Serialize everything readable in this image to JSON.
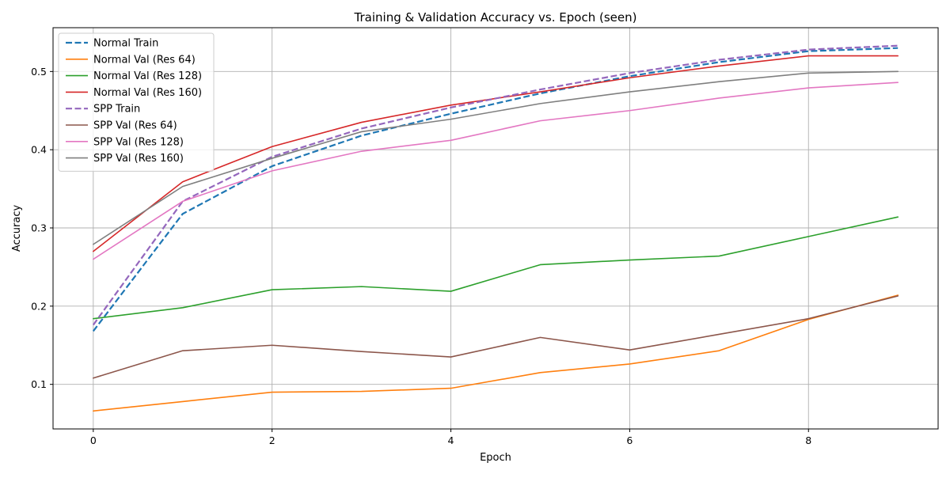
{
  "chart_data": {
    "type": "line",
    "title": "Training & Validation Accuracy vs. Epoch (seen)",
    "xlabel": "Epoch",
    "ylabel": "Accuracy",
    "xlim": [
      -0.45,
      9.45
    ],
    "ylim": [
      0.043,
      0.556
    ],
    "x_ticks": [
      0,
      2,
      4,
      6,
      8
    ],
    "x_tick_labels": [
      "0",
      "2",
      "4",
      "6",
      "8"
    ],
    "y_ticks": [
      0.1,
      0.2,
      0.3,
      0.4,
      0.5
    ],
    "y_tick_labels": [
      "0.1",
      "0.2",
      "0.3",
      "0.4",
      "0.5"
    ],
    "grid": true,
    "legend_position": "top-left",
    "x": [
      0,
      1,
      2,
      3,
      4,
      5,
      6,
      7,
      8,
      9
    ],
    "series": [
      {
        "name": "Normal Train",
        "color": "#1f77b4",
        "dashed": true,
        "values": [
          0.168,
          0.318,
          0.379,
          0.418,
          0.446,
          0.472,
          0.494,
          0.512,
          0.526,
          0.53
        ]
      },
      {
        "name": "Normal Val (Res 64)",
        "color": "#ff7f0e",
        "dashed": false,
        "values": [
          0.066,
          0.078,
          0.09,
          0.091,
          0.095,
          0.115,
          0.126,
          0.143,
          0.183,
          0.214
        ]
      },
      {
        "name": "Normal Val (Res 128)",
        "color": "#2ca02c",
        "dashed": false,
        "values": [
          0.184,
          0.198,
          0.221,
          0.225,
          0.219,
          0.253,
          0.259,
          0.264,
          0.289,
          0.314
        ]
      },
      {
        "name": "Normal Val (Res 160)",
        "color": "#d62728",
        "dashed": false,
        "values": [
          0.27,
          0.359,
          0.404,
          0.435,
          0.457,
          0.474,
          0.492,
          0.507,
          0.52,
          0.52
        ]
      },
      {
        "name": "SPP Train",
        "color": "#9467bd",
        "dashed": true,
        "values": [
          0.176,
          0.334,
          0.391,
          0.427,
          0.454,
          0.477,
          0.498,
          0.515,
          0.528,
          0.533
        ]
      },
      {
        "name": "SPP Val (Res 64)",
        "color": "#8c564b",
        "dashed": false,
        "values": [
          0.108,
          0.143,
          0.15,
          0.142,
          0.135,
          0.16,
          0.144,
          0.164,
          0.184,
          0.213
        ]
      },
      {
        "name": "SPP Val (Res 128)",
        "color": "#e377c2",
        "dashed": false,
        "values": [
          0.26,
          0.334,
          0.373,
          0.398,
          0.412,
          0.437,
          0.45,
          0.466,
          0.479,
          0.486
        ]
      },
      {
        "name": "SPP Val (Res 160)",
        "color": "#7f7f7f",
        "dashed": false,
        "values": [
          0.279,
          0.353,
          0.389,
          0.423,
          0.439,
          0.459,
          0.474,
          0.487,
          0.498,
          0.5
        ]
      }
    ]
  }
}
